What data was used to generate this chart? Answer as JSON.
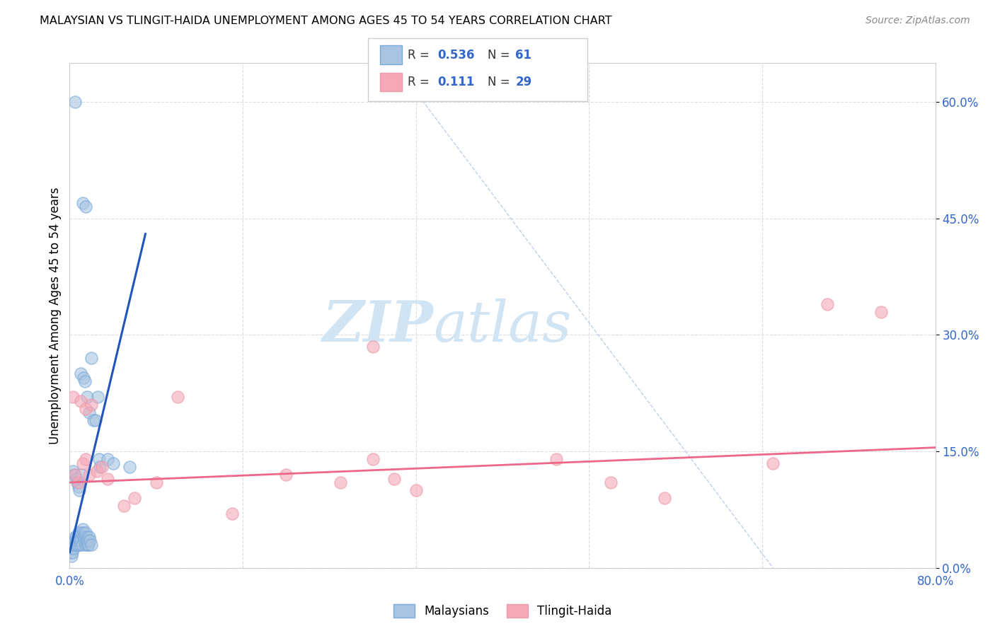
{
  "title": "MALAYSIAN VS TLINGIT-HAIDA UNEMPLOYMENT AMONG AGES 45 TO 54 YEARS CORRELATION CHART",
  "source": "Source: ZipAtlas.com",
  "ylabel": "Unemployment Among Ages 45 to 54 years",
  "y_tick_labels": [
    "0.0%",
    "15.0%",
    "30.0%",
    "45.0%",
    "60.0%"
  ],
  "y_tick_values": [
    0.0,
    15.0,
    30.0,
    45.0,
    60.0
  ],
  "x_tick_labels": [
    "0.0%",
    "",
    "",
    "",
    "",
    "80.0%"
  ],
  "x_tick_values": [
    0.0,
    16.0,
    32.0,
    48.0,
    64.0,
    80.0
  ],
  "xlim": [
    0.0,
    80.0
  ],
  "ylim": [
    0.0,
    65.0
  ],
  "blue_color": "#A8C4E0",
  "pink_color": "#F4A8B8",
  "blue_line_color": "#2255BB",
  "pink_line_color": "#EE6688",
  "blue_edge_color": "#7AAADD",
  "pink_edge_color": "#EE99AA",
  "watermark_zip_color": "#D0E4F4",
  "watermark_atlas_color": "#D0E4F4",
  "malaysians_x": [
    0.5,
    1.2,
    1.5,
    2.0,
    0.3,
    0.4,
    0.6,
    0.7,
    0.8,
    0.9,
    1.0,
    1.1,
    1.3,
    1.4,
    1.6,
    1.8,
    2.2,
    2.4,
    2.6,
    2.7,
    2.8,
    3.5,
    4.0,
    5.5,
    0.1,
    0.15,
    0.2,
    0.25,
    0.3,
    0.35,
    0.4,
    0.45,
    0.5,
    0.55,
    0.6,
    0.65,
    0.7,
    0.75,
    0.8,
    0.85,
    0.9,
    0.95,
    1.0,
    1.05,
    1.1,
    1.15,
    1.2,
    1.25,
    1.3,
    1.35,
    1.4,
    1.45,
    1.5,
    1.55,
    1.6,
    1.65,
    1.7,
    1.75,
    1.8,
    1.85,
    2.0
  ],
  "malaysians_y": [
    60.0,
    47.0,
    46.5,
    27.0,
    12.5,
    12.0,
    11.5,
    11.0,
    10.5,
    10.0,
    25.0,
    12.0,
    24.5,
    24.0,
    22.0,
    20.0,
    19.0,
    19.0,
    22.0,
    14.0,
    13.0,
    14.0,
    13.5,
    13.0,
    2.0,
    1.5,
    2.5,
    2.0,
    3.0,
    2.5,
    3.0,
    3.5,
    4.0,
    3.5,
    4.0,
    3.0,
    3.5,
    3.0,
    4.5,
    4.0,
    3.5,
    3.0,
    4.0,
    3.5,
    4.5,
    3.0,
    5.0,
    4.5,
    4.0,
    3.5,
    4.0,
    3.0,
    4.5,
    3.5,
    4.0,
    3.0,
    3.5,
    3.0,
    4.0,
    3.5,
    3.0
  ],
  "tlingit_x": [
    0.3,
    1.2,
    1.5,
    5.0,
    8.0,
    10.0,
    20.0,
    25.0,
    28.0,
    30.0,
    45.0,
    50.0,
    55.0,
    65.0,
    75.0,
    0.8,
    1.0,
    1.5,
    2.0,
    3.5,
    28.0,
    32.0,
    70.0,
    15.0,
    0.5,
    1.8,
    2.5,
    3.0,
    6.0
  ],
  "tlingit_y": [
    22.0,
    13.5,
    14.0,
    8.0,
    11.0,
    22.0,
    12.0,
    11.0,
    28.5,
    11.5,
    14.0,
    11.0,
    9.0,
    13.5,
    33.0,
    11.0,
    21.5,
    20.5,
    21.0,
    11.5,
    14.0,
    10.0,
    34.0,
    7.0,
    12.0,
    12.0,
    12.5,
    13.0,
    9.0
  ],
  "blue_trendline_x0": 0.0,
  "blue_trendline_x1": 7.0,
  "blue_trendline_y0": 2.0,
  "blue_trendline_y1": 43.0,
  "pink_trendline_x0": 0.0,
  "pink_trendline_x1": 80.0,
  "pink_trendline_y0": 11.0,
  "pink_trendline_y1": 15.5,
  "ref_line_x": [
    30.0,
    65.0
  ],
  "ref_line_y": [
    65.0,
    0.0
  ]
}
